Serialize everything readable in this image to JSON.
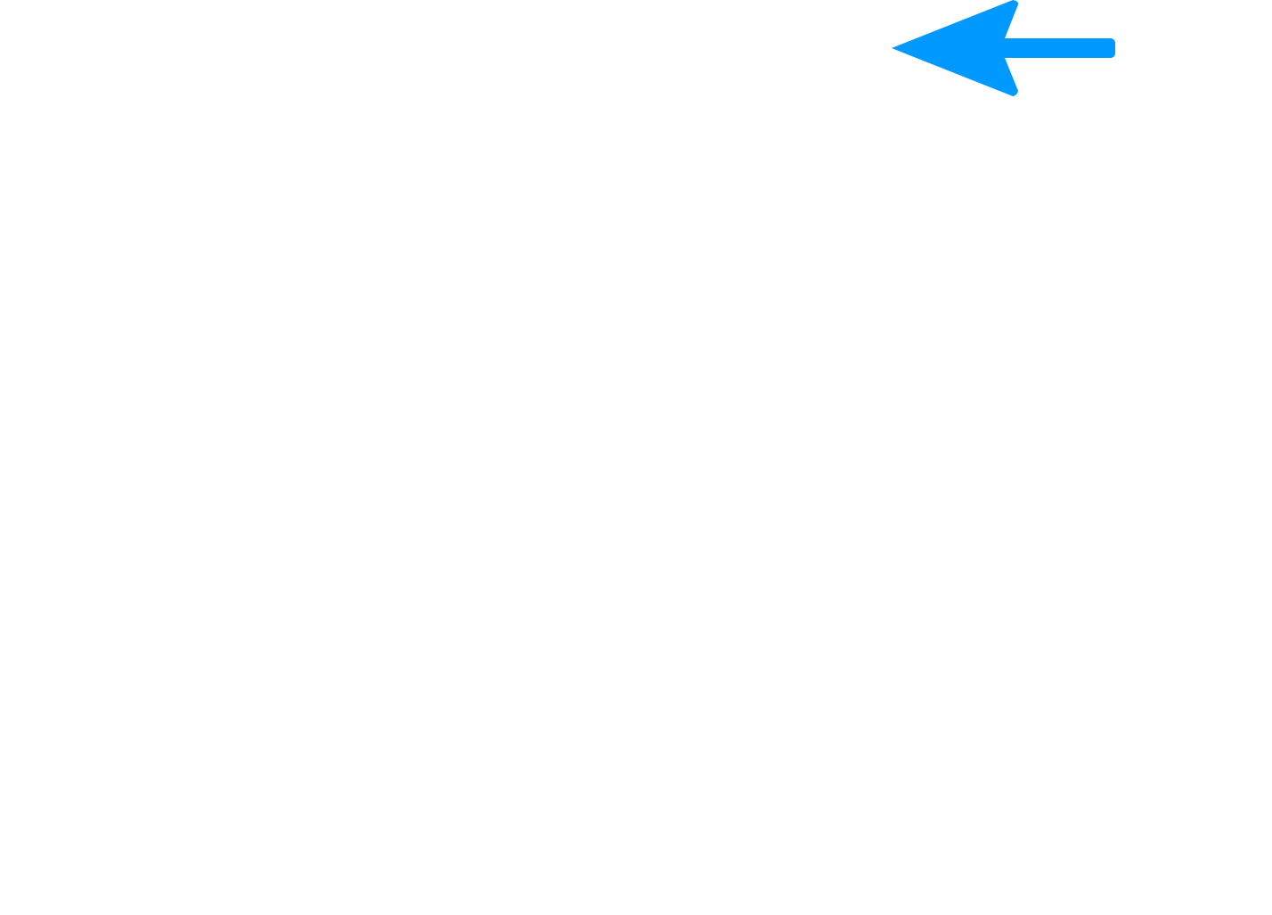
{
  "arrow": {
    "icon": "arrow-left-icon",
    "direction": "left",
    "color": "#0099ff"
  },
  "canvas": {
    "background_color": "#ffffff"
  }
}
